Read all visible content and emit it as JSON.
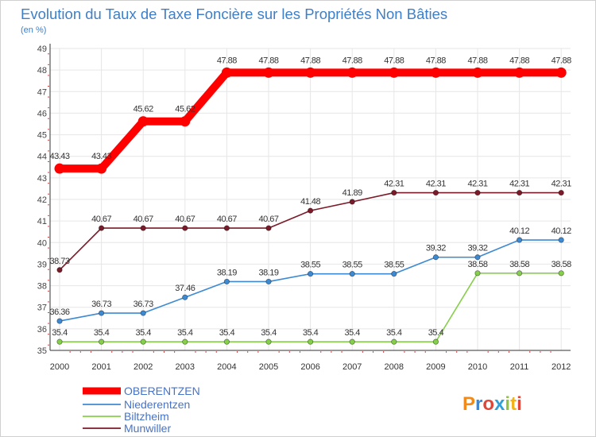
{
  "chart_data": {
    "type": "line",
    "title": "Evolution du Taux de Taxe Foncière sur les Propriétés Non Bâties",
    "subtitle": "(en %)",
    "x": [
      "2000",
      "2001",
      "2002",
      "2003",
      "2004",
      "2005",
      "2006",
      "2007",
      "2008",
      "2009",
      "2010",
      "2011",
      "2012"
    ],
    "ylim": [
      35,
      49
    ],
    "yticks": [
      35,
      36,
      37,
      38,
      39,
      40,
      41,
      42,
      43,
      44,
      45,
      46,
      47,
      48,
      49
    ],
    "grid": true,
    "legend_position": "bottom-left",
    "series": [
      {
        "name": "OBERENTZEN",
        "color": "#ff0000",
        "values": [
          43.43,
          43.43,
          45.62,
          45.62,
          47.88,
          47.88,
          47.88,
          47.88,
          47.88,
          47.88,
          47.88,
          47.88,
          47.88
        ],
        "labels": [
          "43.43",
          "43.43",
          "45.62",
          "45.62",
          "47.88",
          "47.88",
          "47.88",
          "47.88",
          "47.88",
          "47.88",
          "47.88",
          "47.88",
          "47.88"
        ]
      },
      {
        "name": "Niederentzen",
        "color": "#3e8ad2",
        "values": [
          36.36,
          36.73,
          36.73,
          37.46,
          38.19,
          38.19,
          38.55,
          38.55,
          38.55,
          39.32,
          39.32,
          40.12,
          40.12
        ],
        "labels": [
          "36.36",
          "36.73",
          "36.73",
          "37.46",
          "38.19",
          "38.19",
          "38.55",
          "38.55",
          "38.55",
          "39.32",
          "39.32",
          "40.12",
          "40.12"
        ]
      },
      {
        "name": "Biltzheim",
        "color": "#86cf4a",
        "values": [
          35.4,
          35.4,
          35.4,
          35.4,
          35.4,
          35.4,
          35.4,
          35.4,
          35.4,
          35.4,
          38.58,
          38.58,
          38.58
        ],
        "labels": [
          "35.4",
          "35.4",
          "35.4",
          "35.4",
          "35.4",
          "35.4",
          "35.4",
          "35.4",
          "35.4",
          "35.4",
          "38.58",
          "38.58",
          "38.58"
        ]
      },
      {
        "name": "Munwiller",
        "color": "#7b1a28",
        "values": [
          38.73,
          40.67,
          40.67,
          40.67,
          40.67,
          40.67,
          41.48,
          41.89,
          42.31,
          42.31,
          42.31,
          42.31,
          42.31
        ],
        "labels": [
          "38.73",
          "40.67",
          "40.67",
          "40.67",
          "40.67",
          "40.67",
          "41.48",
          "41.89",
          "42.31",
          "42.31",
          "42.31",
          "42.31",
          "42.31"
        ]
      }
    ]
  },
  "logo": {
    "text": "Proxiti"
  }
}
